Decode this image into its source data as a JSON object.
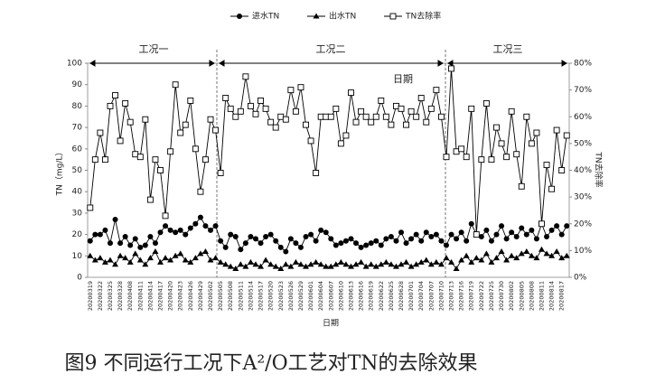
{
  "chart_data": {
    "type": "line",
    "caption": "图9 不同运行工况下A²/O工艺对TN的去除效果",
    "x_label": "日期",
    "y_label": "TN（mg/L）",
    "y2_label": "TN去除率",
    "annotation": "日期",
    "regions": [
      "工况一",
      "工况二",
      "工况三"
    ],
    "categories": [
      "20200319",
      null,
      "20200322",
      null,
      "20200325",
      null,
      "20200328",
      null,
      "20200408",
      null,
      "20200411",
      null,
      "20200414",
      null,
      "20200417",
      null,
      "20200420",
      null,
      "20200423",
      null,
      "20200426",
      null,
      "20200429",
      null,
      "20200502",
      null,
      "20200505",
      null,
      "20200508",
      null,
      "20200511",
      null,
      "20200514",
      null,
      "20200517",
      null,
      "20200520",
      null,
      "20200523",
      null,
      "20200526",
      null,
      "20200529",
      null,
      "20200601",
      null,
      "20200604",
      null,
      "20200607",
      null,
      "20200610",
      null,
      "20200613",
      null,
      "20200616",
      null,
      "20200619",
      null,
      "20200622",
      null,
      "20200625",
      null,
      "20200628",
      null,
      "20200701",
      null,
      "20200704",
      null,
      "20200707",
      null,
      "20200710",
      null,
      "20200713",
      null,
      "20200716",
      null,
      "20200719",
      null,
      "20200722",
      null,
      "20200725",
      null,
      "20200730",
      null,
      "20200802",
      null,
      "20200805",
      null,
      "20200808",
      null,
      "20200811",
      null,
      "20200814",
      null,
      "20200817",
      null
    ],
    "series": [
      {
        "name": "进水TN",
        "color": "#000000",
        "marker": "circle",
        "values": [
          17,
          20,
          20,
          22,
          16,
          27,
          16,
          19,
          15,
          18,
          14,
          15,
          19,
          16,
          21,
          24,
          22,
          21,
          22,
          20,
          23,
          25,
          28,
          24,
          22,
          24,
          17,
          14,
          20,
          19,
          13,
          16,
          19,
          18,
          16,
          19,
          20,
          17,
          14,
          12,
          18,
          16,
          14,
          19,
          20,
          17,
          22,
          21,
          18,
          15,
          16,
          17,
          18,
          16,
          14,
          15,
          16,
          17,
          15,
          18,
          19,
          17,
          21,
          16,
          18,
          20,
          17,
          21,
          19,
          20,
          17,
          15,
          20,
          18,
          21,
          17,
          25,
          20,
          19,
          22,
          17,
          20,
          24,
          18,
          21,
          19,
          23,
          20,
          22,
          18,
          25,
          19,
          22,
          24,
          20,
          24
        ]
      },
      {
        "name": "出水TN",
        "color": "#000000",
        "marker": "triangle",
        "values": [
          10,
          8,
          9,
          7,
          8,
          6,
          10,
          9,
          7,
          11,
          8,
          6,
          9,
          12,
          7,
          9,
          8,
          10,
          11,
          8,
          7,
          9,
          11,
          12,
          8,
          9,
          7,
          6,
          5,
          4,
          6,
          5,
          7,
          6,
          5,
          8,
          6,
          5,
          4,
          6,
          5,
          7,
          6,
          5,
          6,
          7,
          6,
          5,
          5,
          6,
          7,
          6,
          5,
          6,
          7,
          5,
          6,
          5,
          6,
          7,
          6,
          5,
          6,
          7,
          5,
          6,
          7,
          8,
          6,
          7,
          6,
          9,
          7,
          4,
          8,
          10,
          7,
          9,
          8,
          11,
          7,
          9,
          12,
          8,
          10,
          9,
          11,
          12,
          10,
          9,
          13,
          11,
          10,
          12,
          9,
          10
        ]
      },
      {
        "name": "TN去除率",
        "color": "#000000",
        "marker": "square",
        "axis": "y2",
        "values": [
          26,
          44,
          54,
          44,
          64,
          68,
          51,
          65,
          58,
          46,
          45,
          59,
          29,
          44,
          40,
          23,
          47,
          72,
          54,
          57,
          66,
          48,
          32,
          44,
          59,
          55,
          39,
          67,
          63,
          60,
          62,
          75,
          64,
          61,
          66,
          63,
          58,
          56,
          60,
          59,
          70,
          62,
          71,
          57,
          51,
          39,
          60,
          60,
          60,
          63,
          50,
          53,
          69,
          58,
          62,
          60,
          58,
          60,
          66,
          60,
          57,
          64,
          63,
          57,
          62,
          60,
          67,
          58,
          63,
          70,
          60,
          45,
          78,
          47,
          48,
          45,
          63,
          16,
          44,
          65,
          44,
          56,
          50,
          45,
          62,
          46,
          34,
          60,
          50,
          54,
          20,
          42,
          33,
          55,
          40,
          53
        ]
      }
    ],
    "ylim": [
      0,
      100
    ],
    "yticks": [
      0,
      10,
      20,
      30,
      40,
      50,
      60,
      70,
      80,
      90,
      100
    ],
    "y2lim": [
      0,
      80
    ],
    "y2ticks": [
      {
        "value": 0,
        "label": "0%"
      },
      {
        "value": 10,
        "label": "10%"
      },
      {
        "value": 20,
        "label": "20%"
      },
      {
        "value": 30,
        "label": "30%"
      },
      {
        "value": 40,
        "label": "40%"
      },
      {
        "value": 50,
        "label": "50%"
      },
      {
        "value": 60,
        "label": "60%"
      },
      {
        "value": 70,
        "label": "70%"
      },
      {
        "value": 80,
        "label": "80%"
      }
    ],
    "grid": false
  }
}
